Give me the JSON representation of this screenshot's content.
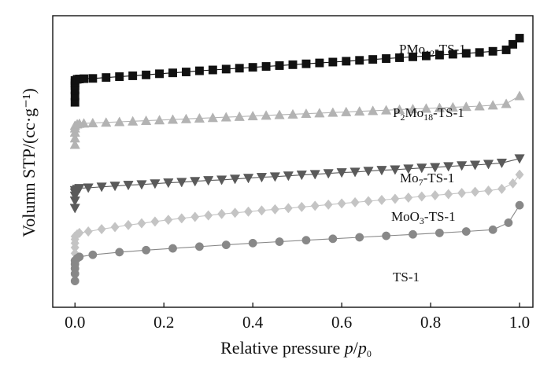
{
  "chart_data": {
    "type": "scatter",
    "title": "",
    "xlabel": "Relative pressure p/p0",
    "xlabel_parts": {
      "main": "Relative pressure ",
      "p": "p",
      "slash": "/",
      "p0": "p",
      "p0_sub": "0"
    },
    "ylabel": "Volumn STP/(cc·g⁻¹)",
    "xlim": [
      -0.05,
      1.03
    ],
    "ylim": [
      0,
      100
    ],
    "x_ticks": [
      0.0,
      0.2,
      0.4,
      0.6,
      0.8,
      1.0
    ],
    "x_tick_labels": [
      "0.0",
      "0.2",
      "0.4",
      "0.6",
      "0.8",
      "1.0"
    ],
    "y_ticks": [],
    "grid": false,
    "legend": "none",
    "series": [
      {
        "name": "PMo12-TS-1",
        "label_parts": {
          "a": "PMo",
          "sub1": "12",
          "b": "-TS-1"
        },
        "color": "#111111",
        "marker": "square",
        "x": [
          0.0,
          0.0,
          0.0,
          0.0,
          0.0,
          0.0,
          0.005,
          0.01,
          0.02,
          0.04,
          0.07,
          0.1,
          0.13,
          0.16,
          0.19,
          0.22,
          0.25,
          0.28,
          0.31,
          0.34,
          0.37,
          0.4,
          0.43,
          0.46,
          0.49,
          0.52,
          0.55,
          0.58,
          0.61,
          0.64,
          0.67,
          0.7,
          0.73,
          0.76,
          0.79,
          0.82,
          0.85,
          0.88,
          0.91,
          0.94,
          0.97,
          0.985,
          1.0
        ],
        "y": [
          70.3,
          72.5,
          74.5,
          76.0,
          77.0,
          77.8,
          78.2,
          78.3,
          78.4,
          78.5,
          78.8,
          79.1,
          79.4,
          79.7,
          80.1,
          80.4,
          80.7,
          81.1,
          81.4,
          81.7,
          82.0,
          82.3,
          82.6,
          82.9,
          83.2,
          83.5,
          83.8,
          84.1,
          84.4,
          84.7,
          85.0,
          85.3,
          85.6,
          85.9,
          86.2,
          86.5,
          86.8,
          87.1,
          87.4,
          87.8,
          88.3,
          90.2,
          92.3
        ]
      },
      {
        "name": "P2Mo18-TS-1",
        "label_parts": {
          "a": "P",
          "sub1": "2",
          "b": "Mo",
          "sub2": "18",
          "c": "-TS-1"
        },
        "color": "#b3b3b3",
        "marker": "triangle-up",
        "x": [
          0.0,
          0.0,
          0.0,
          0.0,
          0.0,
          0.005,
          0.01,
          0.02,
          0.04,
          0.07,
          0.1,
          0.13,
          0.16,
          0.19,
          0.22,
          0.25,
          0.28,
          0.31,
          0.34,
          0.37,
          0.4,
          0.43,
          0.46,
          0.49,
          0.52,
          0.55,
          0.58,
          0.61,
          0.64,
          0.67,
          0.7,
          0.73,
          0.76,
          0.79,
          0.82,
          0.85,
          0.88,
          0.91,
          0.94,
          0.97,
          1.0
        ],
        "y": [
          55.8,
          58.0,
          60.0,
          61.4,
          62.3,
          62.8,
          63.0,
          63.1,
          63.2,
          63.4,
          63.6,
          63.8,
          64.0,
          64.2,
          64.4,
          64.6,
          64.8,
          65.0,
          65.2,
          65.4,
          65.6,
          65.8,
          66.0,
          66.2,
          66.4,
          66.6,
          66.8,
          67.0,
          67.2,
          67.4,
          67.6,
          67.8,
          68.0,
          68.2,
          68.4,
          68.6,
          68.8,
          69.0,
          69.3,
          69.8,
          72.5
        ]
      },
      {
        "name": "Mo7-TS-1",
        "label_parts": {
          "a": "Mo",
          "sub1": "7",
          "b": "-TS-1"
        },
        "color": "#5a5a5a",
        "marker": "triangle-down",
        "x": [
          0.0,
          0.0,
          0.0,
          0.0,
          0.0,
          0.005,
          0.01,
          0.03,
          0.06,
          0.09,
          0.12,
          0.15,
          0.18,
          0.21,
          0.24,
          0.27,
          0.3,
          0.33,
          0.36,
          0.39,
          0.42,
          0.45,
          0.48,
          0.51,
          0.54,
          0.57,
          0.6,
          0.63,
          0.66,
          0.69,
          0.72,
          0.75,
          0.78,
          0.81,
          0.84,
          0.87,
          0.9,
          0.93,
          0.96,
          1.0
        ],
        "y": [
          34.0,
          36.5,
          38.2,
          39.3,
          40.1,
          40.5,
          40.8,
          41.0,
          41.3,
          41.6,
          41.9,
          42.1,
          42.4,
          42.7,
          42.9,
          43.2,
          43.5,
          43.7,
          44.0,
          44.3,
          44.6,
          44.8,
          45.1,
          45.4,
          45.6,
          45.9,
          46.2,
          46.4,
          46.7,
          47.0,
          47.2,
          47.5,
          47.8,
          48.0,
          48.3,
          48.6,
          48.8,
          49.1,
          49.5,
          51.0
        ]
      },
      {
        "name": "MoO3-TS-1",
        "label_parts": {
          "a": "MoO",
          "sub1": "3",
          "b": "-TS-1"
        },
        "color": "#c4c4c4",
        "marker": "diamond",
        "x": [
          0.0,
          0.0,
          0.0,
          0.0,
          0.0,
          0.005,
          0.01,
          0.03,
          0.06,
          0.09,
          0.12,
          0.15,
          0.18,
          0.21,
          0.24,
          0.27,
          0.3,
          0.33,
          0.36,
          0.39,
          0.42,
          0.45,
          0.48,
          0.51,
          0.54,
          0.57,
          0.6,
          0.63,
          0.66,
          0.69,
          0.72,
          0.75,
          0.78,
          0.81,
          0.84,
          0.87,
          0.9,
          0.93,
          0.96,
          0.985,
          1.0
        ],
        "y": [
          18.5,
          20.5,
          22.0,
          23.3,
          24.3,
          25.0,
          25.5,
          26.0,
          26.8,
          27.5,
          28.2,
          28.8,
          29.4,
          30.0,
          30.5,
          31.0,
          31.5,
          32.0,
          32.4,
          32.8,
          33.2,
          33.6,
          34.0,
          34.4,
          34.8,
          35.2,
          35.6,
          36.0,
          36.4,
          36.8,
          37.2,
          37.6,
          38.0,
          38.4,
          38.8,
          39.2,
          39.6,
          40.0,
          40.6,
          42.5,
          45.5
        ]
      },
      {
        "name": "TS-1",
        "label_parts": {
          "a": "TS-1"
        },
        "color": "#888888",
        "marker": "circle",
        "x": [
          0.0,
          0.0,
          0.0,
          0.0,
          0.0,
          0.005,
          0.01,
          0.04,
          0.1,
          0.16,
          0.22,
          0.28,
          0.34,
          0.4,
          0.46,
          0.52,
          0.58,
          0.64,
          0.7,
          0.76,
          0.82,
          0.88,
          0.94,
          0.975,
          1.0
        ],
        "y": [
          9.0,
          11.5,
          13.3,
          14.8,
          16.0,
          16.8,
          17.3,
          18.0,
          18.9,
          19.6,
          20.2,
          20.8,
          21.4,
          22.0,
          22.5,
          23.0,
          23.5,
          24.0,
          24.5,
          25.0,
          25.5,
          26.0,
          26.6,
          29.0,
          35.0
        ]
      }
    ]
  }
}
